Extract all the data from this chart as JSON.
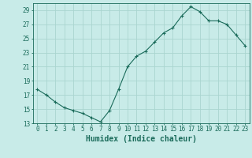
{
  "x": [
    0,
    1,
    2,
    3,
    4,
    5,
    6,
    7,
    8,
    9,
    10,
    11,
    12,
    13,
    14,
    15,
    16,
    17,
    18,
    19,
    20,
    21,
    22,
    23
  ],
  "y": [
    17.8,
    17.0,
    16.0,
    15.2,
    14.8,
    14.4,
    13.8,
    13.2,
    14.8,
    17.8,
    21.0,
    22.5,
    23.2,
    24.5,
    25.8,
    26.5,
    28.2,
    29.5,
    28.8,
    27.5,
    27.5,
    27.0,
    25.5,
    24.0
  ],
  "line_color": "#1a6b5a",
  "marker": "+",
  "marker_size": 3,
  "marker_color": "#1a6b5a",
  "bg_color": "#c8ebe8",
  "grid_color": "#aad5d0",
  "xlabel": "Humidex (Indice chaleur)",
  "ylabel": "",
  "title": "",
  "xlim": [
    -0.5,
    23.5
  ],
  "ylim": [
    13,
    30
  ],
  "yticks": [
    13,
    15,
    17,
    19,
    21,
    23,
    25,
    27,
    29
  ],
  "xticks": [
    0,
    1,
    2,
    3,
    4,
    5,
    6,
    7,
    8,
    9,
    10,
    11,
    12,
    13,
    14,
    15,
    16,
    17,
    18,
    19,
    20,
    21,
    22,
    23
  ],
  "tick_color": "#1a6b5a",
  "axis_color": "#1a6b5a",
  "label_fontsize": 5.5,
  "xlabel_fontsize": 7
}
